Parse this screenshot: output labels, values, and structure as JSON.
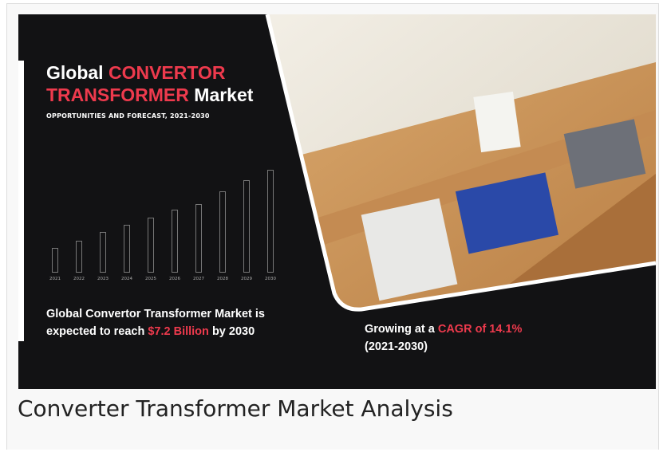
{
  "image": {
    "title": {
      "line1_plain": "Global",
      "line1_accent": "CONVERTOR",
      "line2_accent": "TRANSFORMER",
      "line2_plain": "Market"
    },
    "subtitle": "OPPORTUNITIES AND FORECAST, 2021-2030",
    "years": [
      "2021",
      "2022",
      "2023",
      "2024",
      "2025",
      "2026",
      "2027",
      "2028",
      "2029",
      "2030"
    ],
    "reach": {
      "line1": "Global Convertor Transformer Market is",
      "before": "expected to reach",
      "accent": "$7.2 Billion",
      "after": "by 2030"
    },
    "growth": {
      "before": "Growing at a",
      "accent": "CAGR of 14.1%",
      "period": "(2021-2030)"
    }
  },
  "caption": "Converter Transformer Market Analysis"
}
